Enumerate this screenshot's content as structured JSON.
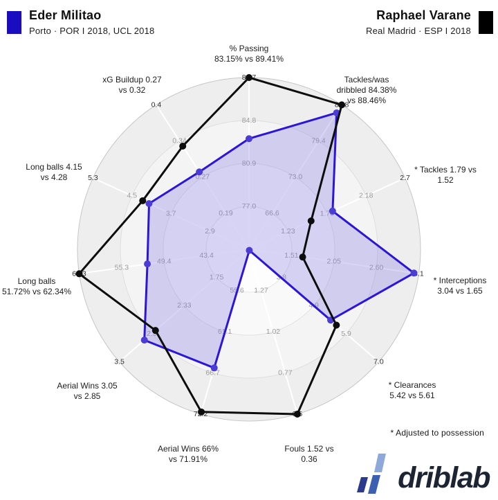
{
  "header": {
    "player1": {
      "name": "Eder Militao",
      "meta": "Porto · POR I 2018, UCL 2018",
      "color": "#1a0dc0"
    },
    "player2": {
      "name": "Raphael Varane",
      "meta": "Real Madrid · ESP I 2018",
      "color": "#000000"
    }
  },
  "footnote": "* Adjusted to possession",
  "brand": {
    "name": "driblab"
  },
  "chart_data": {
    "type": "radar",
    "num_axes": 11,
    "legend_position": "top",
    "grid": "circular, 4 rings, white spokes",
    "series": [
      {
        "name": "Eder Militao",
        "color": "#2b15d6",
        "fill": "rgba(126,115,226,0.30)",
        "values": [
          83.15,
          84.38,
          1.79,
          3.04,
          5.42,
          1.52,
          66,
          3.05,
          51.72,
          4.15,
          0.27
        ]
      },
      {
        "name": "Raphael Varane",
        "color": "#0d0d0d",
        "fill": "none",
        "values": [
          89.41,
          88.46,
          1.52,
          1.65,
          5.61,
          0.36,
          71.91,
          2.85,
          62.34,
          4.28,
          0.32
        ]
      }
    ],
    "axes": [
      {
        "metric": "% Passing",
        "label_lines": [
          "% Passing",
          "83.15% vs 89.41%"
        ],
        "ticks": [
          "77.0",
          "80.9",
          "84.8",
          "88.7"
        ]
      },
      {
        "metric": "Tackles/was dribbled",
        "label_lines": [
          "Tackles/was",
          "dribbled 84.38%",
          "vs 88.46%"
        ],
        "ticks": [
          "66.6",
          "73.0",
          "79.4",
          "85.8"
        ]
      },
      {
        "metric": "* Tackles",
        "label_lines": [
          "* Tackles 1.79 vs",
          "1.52"
        ],
        "ticks": [
          "1.23",
          "1.70",
          "2.18",
          "2.7"
        ]
      },
      {
        "metric": "* Interceptions",
        "label_lines": [
          "* Interceptions",
          "3.04 vs 1.65"
        ],
        "ticks": [
          "1.51",
          "2.05",
          "2.60",
          "3.1"
        ]
      },
      {
        "metric": "* Clearances",
        "label_lines": [
          "* Clearances",
          "5.42 vs 5.61"
        ],
        "ticks": [
          "3.8",
          "4.9",
          "5.9",
          "7.0"
        ]
      },
      {
        "metric": "Fouls",
        "label_lines": [
          "Fouls 1.52 vs",
          "0.36"
        ],
        "ticks": [
          "1.27",
          "1.02",
          "0.77",
          "0.5"
        ]
      },
      {
        "metric": "Aerial Wins %",
        "label_lines": [
          "Aerial Wins 66%",
          "vs 71.91%"
        ],
        "ticks": [
          "55.6",
          "61.1",
          "66.7",
          "72.2"
        ]
      },
      {
        "metric": "Aerial Wins",
        "label_lines": [
          "Aerial Wins 3.05",
          "vs 2.85"
        ],
        "ticks": [
          "1.75",
          "2.33",
          "2.9",
          "3.5"
        ]
      },
      {
        "metric": "Long balls %",
        "label_lines": [
          "Long balls",
          "51.72% vs 62.34%"
        ],
        "ticks": [
          "43.4",
          "49.4",
          "55.3",
          "61.3"
        ]
      },
      {
        "metric": "Long balls",
        "label_lines": [
          "Long balls 4.15",
          "vs 4.28"
        ],
        "ticks": [
          "2.9",
          "3.7",
          "4.5",
          "5.3"
        ]
      },
      {
        "metric": "xG Buildup",
        "label_lines": [
          "xG Buildup 0.27",
          "vs 0.32"
        ],
        "ticks": [
          "0.19",
          "0.27",
          "0.34",
          "0.4"
        ]
      }
    ]
  }
}
